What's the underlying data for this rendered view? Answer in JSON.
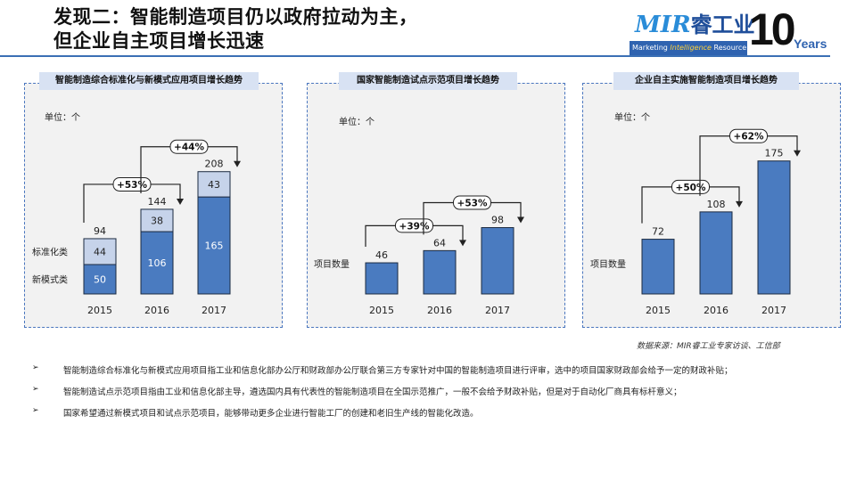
{
  "header": {
    "title_line1": "发现二：智能制造项目仍以政府拉动为主，",
    "title_line2": "但企业自主项目增长迅速"
  },
  "logo": {
    "brand_mir": "MIR",
    "brand_cn": "睿工业",
    "tagline_a": "Marketing ",
    "tagline_b": "Intelligence",
    "tagline_c": " Resource",
    "anniversary": "10",
    "years": "Years"
  },
  "colors": {
    "bar": "#4a7bc0",
    "bar_light": "#c6d3ea",
    "panel_bg": "#f2f2f2",
    "accent": "#2f63b0"
  },
  "chart_data": [
    {
      "type": "bar",
      "stacked": true,
      "title": "智能制造综合标准化与新模式应用项目增长趋势",
      "unit": "单位：个",
      "categories": [
        "2015",
        "2016",
        "2017"
      ],
      "series": [
        {
          "name": "新模式类",
          "values": [
            50,
            106,
            165
          ]
        },
        {
          "name": "标准化类",
          "values": [
            44,
            38,
            43
          ]
        }
      ],
      "totals": [
        94,
        144,
        208
      ],
      "growth": [
        "+53%",
        "+44%"
      ]
    },
    {
      "type": "bar",
      "title": "国家智能制造试点示范项目增长趋势",
      "unit": "单位：个",
      "categories": [
        "2015",
        "2016",
        "2017"
      ],
      "series": [
        {
          "name": "项目数量",
          "values": [
            46,
            64,
            98
          ]
        }
      ],
      "growth": [
        "+39%",
        "+53%"
      ]
    },
    {
      "type": "bar",
      "title": "企业自主实施智能制造项目增长趋势",
      "unit": "单位：个",
      "categories": [
        "2015",
        "2016",
        "2017"
      ],
      "series": [
        {
          "name": "项目数量",
          "values": [
            72,
            108,
            175
          ]
        }
      ],
      "growth": [
        "+50%",
        "+62%"
      ]
    }
  ],
  "source": "数据来源：MIR睿工业专家访谈、工信部",
  "bullets": [
    {
      "mark": "➢",
      "text": "智能制造综合标准化与新模式应用项目指工业和信息化部办公厅和财政部办公厅联合第三方专家针对中国的智能制造项目进行评审，选中的项目国家财政部会给予一定的财政补贴；"
    },
    {
      "mark": "➢",
      "text": "智能制造试点示范项目指由工业和信息化部主导，遴选国内具有代表性的智能制造项目在全国示范推广，一般不会给予财政补贴，但是对于自动化厂商具有标杆意义；"
    },
    {
      "mark": "➢",
      "text": "国家希望通过新模式项目和试点示范项目，能够带动更多企业进行智能工厂的创建和老旧生产线的智能化改造。"
    }
  ]
}
